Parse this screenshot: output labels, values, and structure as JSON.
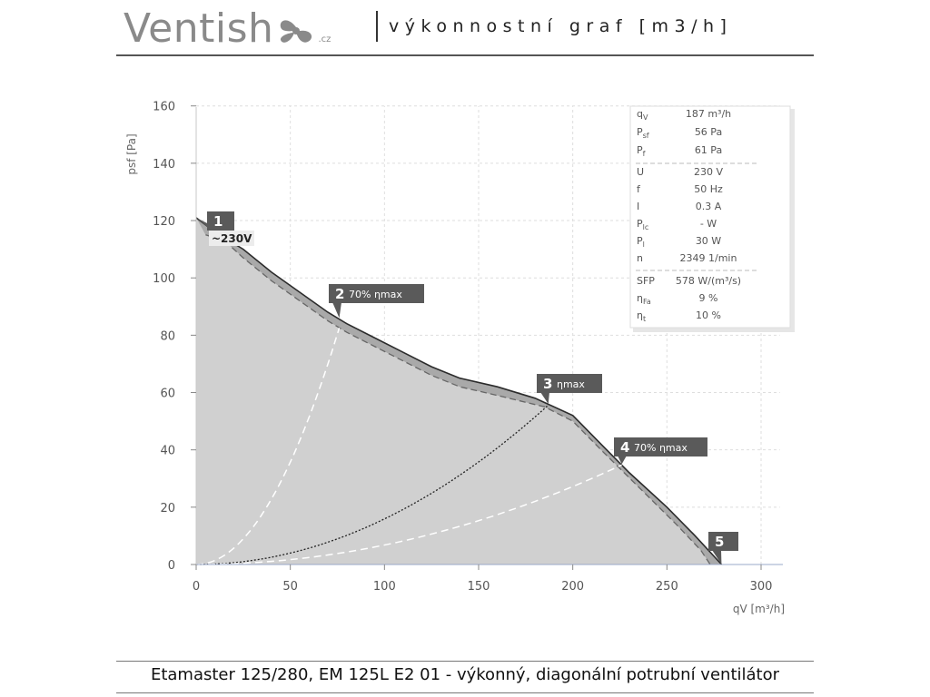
{
  "header": {
    "logo_text": "Ventish",
    "logo_tld": ".cz",
    "title": "výkonnostní graf [m3/h]"
  },
  "footer": {
    "caption": "Etamaster 125/280, EM 125L E2 01 - výkonný, diagonální potrubní ventilátor"
  },
  "colors": {
    "fill": "#d0d0d0",
    "badge": "#5a5a5a",
    "curve": "#2b2b2b"
  },
  "chart_data": {
    "type": "area",
    "xlabel": "qV [m³/h]",
    "ylabel": "psf [Pa]",
    "xlim": [
      0,
      310
    ],
    "ylim": [
      0,
      160
    ],
    "xticks": [
      0,
      50,
      100,
      150,
      200,
      250,
      300
    ],
    "yticks": [
      0,
      20,
      40,
      60,
      80,
      100,
      120,
      140,
      160
    ],
    "grid": true,
    "curves": {
      "max": [
        [
          0,
          121
        ],
        [
          10,
          116
        ],
        [
          25,
          110
        ],
        [
          40,
          102
        ],
        [
          55,
          95
        ],
        [
          70,
          88
        ],
        [
          80,
          84
        ],
        [
          95,
          79
        ],
        [
          110,
          74
        ],
        [
          125,
          69
        ],
        [
          140,
          65
        ],
        [
          160,
          62
        ],
        [
          180,
          58
        ],
        [
          200,
          52
        ],
        [
          215,
          42
        ],
        [
          230,
          32
        ],
        [
          250,
          20
        ],
        [
          265,
          10
        ],
        [
          279,
          0
        ]
      ],
      "dashed": [
        [
          5,
          115
        ],
        [
          15,
          113
        ],
        [
          25,
          107
        ],
        [
          40,
          99
        ],
        [
          55,
          92
        ],
        [
          70,
          85
        ],
        [
          80,
          81
        ],
        [
          95,
          76
        ],
        [
          110,
          71
        ],
        [
          125,
          66
        ],
        [
          140,
          62
        ],
        [
          160,
          59
        ],
        [
          185,
          55
        ],
        [
          200,
          50
        ],
        [
          215,
          40
        ],
        [
          235,
          27
        ],
        [
          255,
          14
        ],
        [
          268,
          5
        ],
        [
          273,
          0
        ]
      ]
    },
    "system_curves": [
      {
        "k": 0.0143,
        "x_end": 76,
        "style": "light-dashed"
      },
      {
        "k": 0.00159,
        "x_end": 187,
        "style": "dark-dotted"
      },
      {
        "k": 0.00068,
        "x_end": 226,
        "style": "light-dashed"
      }
    ],
    "points": [
      {
        "id": "1",
        "label": "",
        "sublabel": "~230V",
        "x": 0,
        "y": 121
      },
      {
        "id": "2",
        "label": "70% ηmax",
        "x": 76,
        "y": 86
      },
      {
        "id": "3",
        "label": "ηmax",
        "x": 187,
        "y": 56
      },
      {
        "id": "4",
        "label": "70% ηmax",
        "x": 226,
        "y": 35
      },
      {
        "id": "5",
        "label": "",
        "x": 279,
        "y": 0
      }
    ],
    "info": [
      {
        "symbol": "q",
        "sub": "V",
        "value": "187 m³/h"
      },
      {
        "symbol": "P",
        "sub": "sf",
        "value": "56 Pa"
      },
      {
        "symbol": "P",
        "sub": "f",
        "value": "61 Pa"
      },
      {
        "symbol": "U",
        "sub": "",
        "value": "230 V"
      },
      {
        "symbol": "f",
        "sub": "",
        "value": "50 Hz"
      },
      {
        "symbol": "I",
        "sub": "",
        "value": "0.3 A"
      },
      {
        "symbol": "P",
        "sub": "lc",
        "value": "- W"
      },
      {
        "symbol": "P",
        "sub": "l",
        "value": "30 W"
      },
      {
        "symbol": "n",
        "sub": "",
        "value": "2349 1/min"
      },
      {
        "symbol": "SFP",
        "sub": "",
        "value": "578 W/(m³/s)"
      },
      {
        "symbol": "η",
        "sub": "Fa",
        "value": "9 %"
      },
      {
        "symbol": "η",
        "sub": "t",
        "value": "10 %"
      }
    ]
  }
}
